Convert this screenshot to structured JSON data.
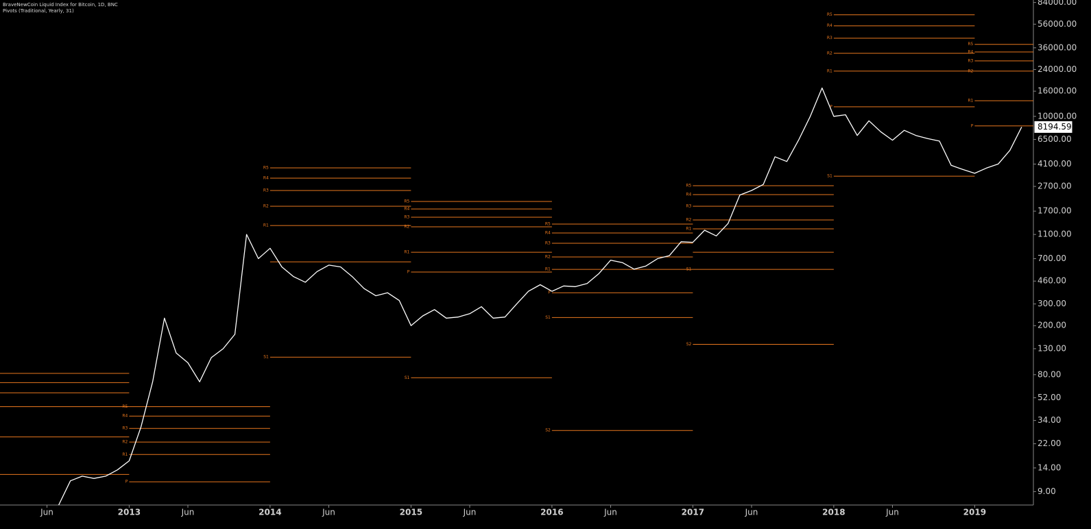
{
  "chart_data": {
    "type": "line",
    "title": "BraveNewCoin Liquid Index for Bitcoin, 1D, BNC",
    "subtitle": "Pivots (Traditional, Yearly, 31)",
    "log_scale": true,
    "grid": false,
    "background": "#000000",
    "xlim": [
      "2012-02",
      "2019-06"
    ],
    "xticks": [
      {
        "value": "2012-06",
        "label": "Jun"
      },
      {
        "value": "2013-01",
        "label": "2013"
      },
      {
        "value": "2013-06",
        "label": "Jun"
      },
      {
        "value": "2014-01",
        "label": "2014"
      },
      {
        "value": "2014-06",
        "label": "Jun"
      },
      {
        "value": "2015-01",
        "label": "2015"
      },
      {
        "value": "2015-06",
        "label": "Jun"
      },
      {
        "value": "2016-01",
        "label": "2016"
      },
      {
        "value": "2016-06",
        "label": "Jun"
      },
      {
        "value": "2017-01",
        "label": "2017"
      },
      {
        "value": "2017-06",
        "label": "Jun"
      },
      {
        "value": "2018-01",
        "label": "2018"
      },
      {
        "value": "2018-06",
        "label": "Jun"
      },
      {
        "value": "2019-01",
        "label": "2019"
      }
    ],
    "ylim": [
      7,
      88000
    ],
    "yticks": [
      {
        "value": 84000,
        "label": "84000.00"
      },
      {
        "value": 56000,
        "label": "56000.00"
      },
      {
        "value": 36000,
        "label": "36000.00"
      },
      {
        "value": 24000,
        "label": "24000.00"
      },
      {
        "value": 16000,
        "label": "16000.00"
      },
      {
        "value": 10000,
        "label": "10000.00"
      },
      {
        "value": 6500,
        "label": "6500.00"
      },
      {
        "value": 4100,
        "label": "4100.00"
      },
      {
        "value": 2700,
        "label": "2700.00"
      },
      {
        "value": 1700,
        "label": "1700.00"
      },
      {
        "value": 1100,
        "label": "1100.00"
      },
      {
        "value": 700,
        "label": "700.00"
      },
      {
        "value": 460,
        "label": "460.00"
      },
      {
        "value": 300,
        "label": "300.00"
      },
      {
        "value": 200,
        "label": "200.00"
      },
      {
        "value": 130,
        "label": "130.00"
      },
      {
        "value": 80,
        "label": "80.00"
      },
      {
        "value": 52,
        "label": "52.00"
      },
      {
        "value": 34,
        "label": "34.00"
      },
      {
        "value": 22,
        "label": "22.00"
      },
      {
        "value": 14,
        "label": "14.00"
      },
      {
        "value": 9,
        "label": "9.00"
      }
    ],
    "series": [
      {
        "color": "#ffffff",
        "x": [
          "2012-07",
          "2012-08",
          "2012-09",
          "2012-10",
          "2012-11",
          "2012-12",
          "2013-01",
          "2013-02",
          "2013-03",
          "2013-04",
          "2013-05",
          "2013-06",
          "2013-07",
          "2013-08",
          "2013-09",
          "2013-10",
          "2013-11",
          "2013-12",
          "2014-01",
          "2014-02",
          "2014-03",
          "2014-04",
          "2014-05",
          "2014-06",
          "2014-07",
          "2014-08",
          "2014-09",
          "2014-10",
          "2014-11",
          "2014-12",
          "2015-01",
          "2015-02",
          "2015-03",
          "2015-04",
          "2015-05",
          "2015-06",
          "2015-07",
          "2015-08",
          "2015-09",
          "2015-10",
          "2015-11",
          "2015-12",
          "2016-01",
          "2016-02",
          "2016-03",
          "2016-04",
          "2016-05",
          "2016-06",
          "2016-07",
          "2016-08",
          "2016-09",
          "2016-10",
          "2016-11",
          "2016-12",
          "2017-01",
          "2017-02",
          "2017-03",
          "2017-04",
          "2017-05",
          "2017-06",
          "2017-07",
          "2017-08",
          "2017-09",
          "2017-10",
          "2017-11",
          "2017-12",
          "2018-01",
          "2018-02",
          "2018-03",
          "2018-04",
          "2018-05",
          "2018-06",
          "2018-07",
          "2018-08",
          "2018-09",
          "2018-10",
          "2018-11",
          "2018-12",
          "2019-01",
          "2019-02",
          "2019-03",
          "2019-04",
          "2019-05"
        ],
        "values": [
          7,
          11,
          12,
          11.5,
          12,
          13.5,
          16,
          30,
          70,
          230,
          120,
          100,
          70,
          110,
          130,
          170,
          1100,
          700,
          850,
          600,
          500,
          450,
          550,
          620,
          600,
          500,
          400,
          350,
          370,
          320,
          200,
          240,
          270,
          230,
          235,
          250,
          285,
          230,
          235,
          300,
          380,
          430,
          380,
          420,
          415,
          440,
          530,
          680,
          650,
          575,
          610,
          700,
          740,
          960,
          950,
          1190,
          1070,
          1350,
          2300,
          2500,
          2800,
          4700,
          4300,
          6400,
          10000,
          17000,
          10000,
          10300,
          7000,
          9200,
          7500,
          6400,
          7700,
          7000,
          6600,
          6300,
          4000,
          3700,
          3450,
          3800,
          4100,
          5300,
          8194.59
        ]
      }
    ],
    "pivot_color": "#e8771e",
    "pivots": [
      {
        "start": "2012-02",
        "end": "2013-01",
        "levels": [
          {
            "label": null,
            "value": 82
          },
          {
            "label": null,
            "value": 69
          },
          {
            "label": null,
            "value": 57
          },
          {
            "label": null,
            "value": 44
          },
          {
            "label": null,
            "value": 25
          },
          {
            "label": null,
            "value": 12.4
          }
        ]
      },
      {
        "start": "2013-01",
        "end": "2014-01",
        "levels": [
          {
            "label": "R5",
            "value": 44
          },
          {
            "label": "R4",
            "value": 36.9
          },
          {
            "label": "R3",
            "value": 29.3
          },
          {
            "label": "R2",
            "value": 22.7
          },
          {
            "label": "R1",
            "value": 18
          },
          {
            "label": "P",
            "value": 10.8
          }
        ]
      },
      {
        "start": "2014-01",
        "end": "2015-01",
        "levels": [
          {
            "label": "R5",
            "value": 3820
          },
          {
            "label": "R4",
            "value": 3150
          },
          {
            "label": "R3",
            "value": 2500
          },
          {
            "label": "R2",
            "value": 1862
          },
          {
            "label": "R1",
            "value": 1300
          },
          {
            "label": null,
            "value": 659
          },
          {
            "label": "S1",
            "value": 111
          }
        ]
      },
      {
        "start": "2015-01",
        "end": "2016-01",
        "levels": [
          {
            "label": "R5",
            "value": 2037
          },
          {
            "label": "R4",
            "value": 1770
          },
          {
            "label": "R3",
            "value": 1517
          },
          {
            "label": "R2",
            "value": 1268
          },
          {
            "label": "R1",
            "value": 789
          },
          {
            "label": "P",
            "value": 545
          },
          {
            "label": "S1",
            "value": 75.5
          }
        ]
      },
      {
        "start": "2016-01",
        "end": "2017-01",
        "levels": [
          {
            "label": "R5",
            "value": 1336
          },
          {
            "label": "R4",
            "value": 1131
          },
          {
            "label": "R3",
            "value": 933
          },
          {
            "label": "R2",
            "value": 722
          },
          {
            "label": "R1",
            "value": 573
          },
          {
            "label": "P",
            "value": 370
          },
          {
            "label": "S1",
            "value": 233
          },
          {
            "label": "S2",
            "value": 28.2
          }
        ]
      },
      {
        "start": "2017-01",
        "end": "2018-01",
        "levels": [
          {
            "label": "R5",
            "value": 2735
          },
          {
            "label": "R4",
            "value": 2316
          },
          {
            "label": "R3",
            "value": 1862
          },
          {
            "label": "R2",
            "value": 1442
          },
          {
            "label": "R1",
            "value": 1221
          },
          {
            "label": null,
            "value": 789
          },
          {
            "label": "S1",
            "value": 573
          },
          {
            "label": "S2",
            "value": 141
          }
        ]
      },
      {
        "start": "2018-01",
        "end": "2019-01",
        "levels": [
          {
            "label": "R5",
            "value": 66700
          },
          {
            "label": "R4",
            "value": 54300
          },
          {
            "label": "R3",
            "value": 43100
          },
          {
            "label": "R2",
            "value": 32500
          },
          {
            "label": "R1",
            "value": 23300
          },
          {
            "label": "P",
            "value": 11960
          },
          {
            "label": "S1",
            "value": 3270
          }
        ]
      },
      {
        "start": "2019-01",
        "end": "2019-06",
        "levels": [
          {
            "label": "R5",
            "value": 38400
          },
          {
            "label": "R4",
            "value": 33300
          },
          {
            "label": "R3",
            "value": 28200
          },
          {
            "label": "R2",
            "value": 23300
          },
          {
            "label": "R1",
            "value": 13400
          },
          {
            "label": "P",
            "value": 8360
          }
        ]
      }
    ]
  }
}
